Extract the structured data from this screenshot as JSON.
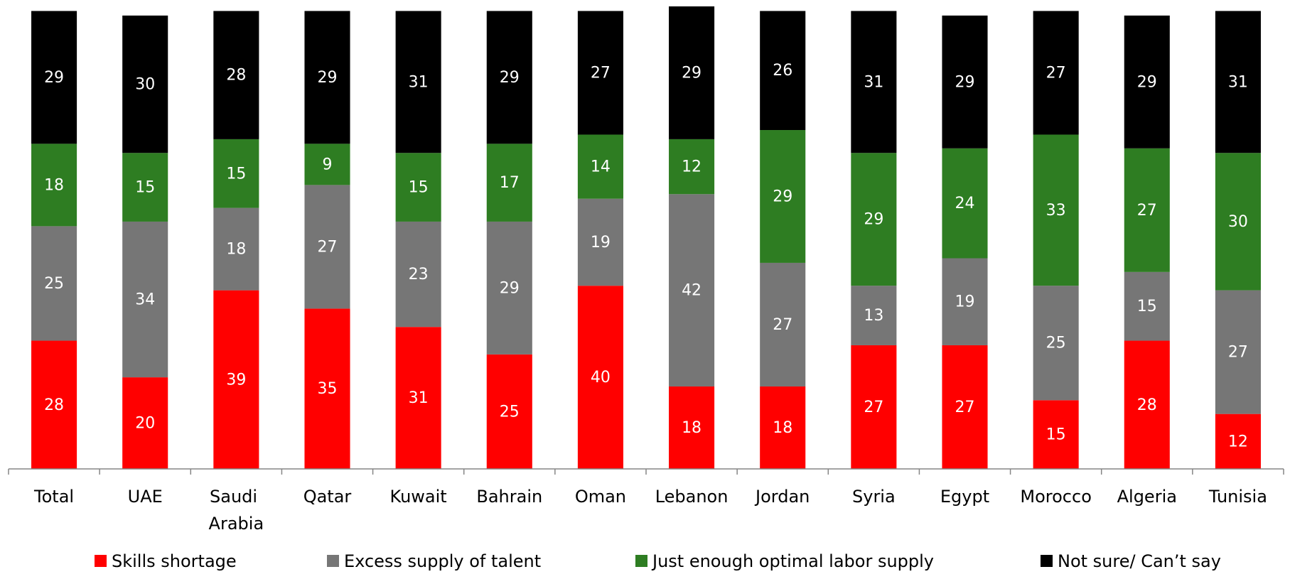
{
  "chart_data": {
    "type": "stacked_bar",
    "categories": [
      "Total",
      "UAE",
      "Saudi Arabia",
      "Qatar",
      "Kuwait",
      "Bahrain",
      "Oman",
      "Lebanon",
      "Jordan",
      "Syria",
      "Egypt",
      "Morocco",
      "Algeria",
      "Tunisia"
    ],
    "series": [
      {
        "name": "Skills shortage",
        "color": "#ff0000",
        "values": [
          28,
          20,
          39,
          35,
          31,
          25,
          40,
          18,
          18,
          27,
          27,
          15,
          28,
          12
        ]
      },
      {
        "name": "Excess supply of talent",
        "color": "#767676",
        "values": [
          25,
          34,
          18,
          27,
          23,
          29,
          19,
          42,
          27,
          13,
          19,
          25,
          15,
          27
        ]
      },
      {
        "name": "Just enough optimal labor supply",
        "color": "#2e7d22",
        "values": [
          18,
          15,
          15,
          9,
          15,
          17,
          14,
          12,
          29,
          29,
          24,
          33,
          27,
          30
        ]
      },
      {
        "name": "Not sure/ Can’t say",
        "color": "#000000",
        "values": [
          29,
          30,
          28,
          29,
          31,
          29,
          27,
          29,
          26,
          31,
          29,
          27,
          29,
          31
        ]
      }
    ],
    "ylim": [
      0,
      101
    ]
  }
}
